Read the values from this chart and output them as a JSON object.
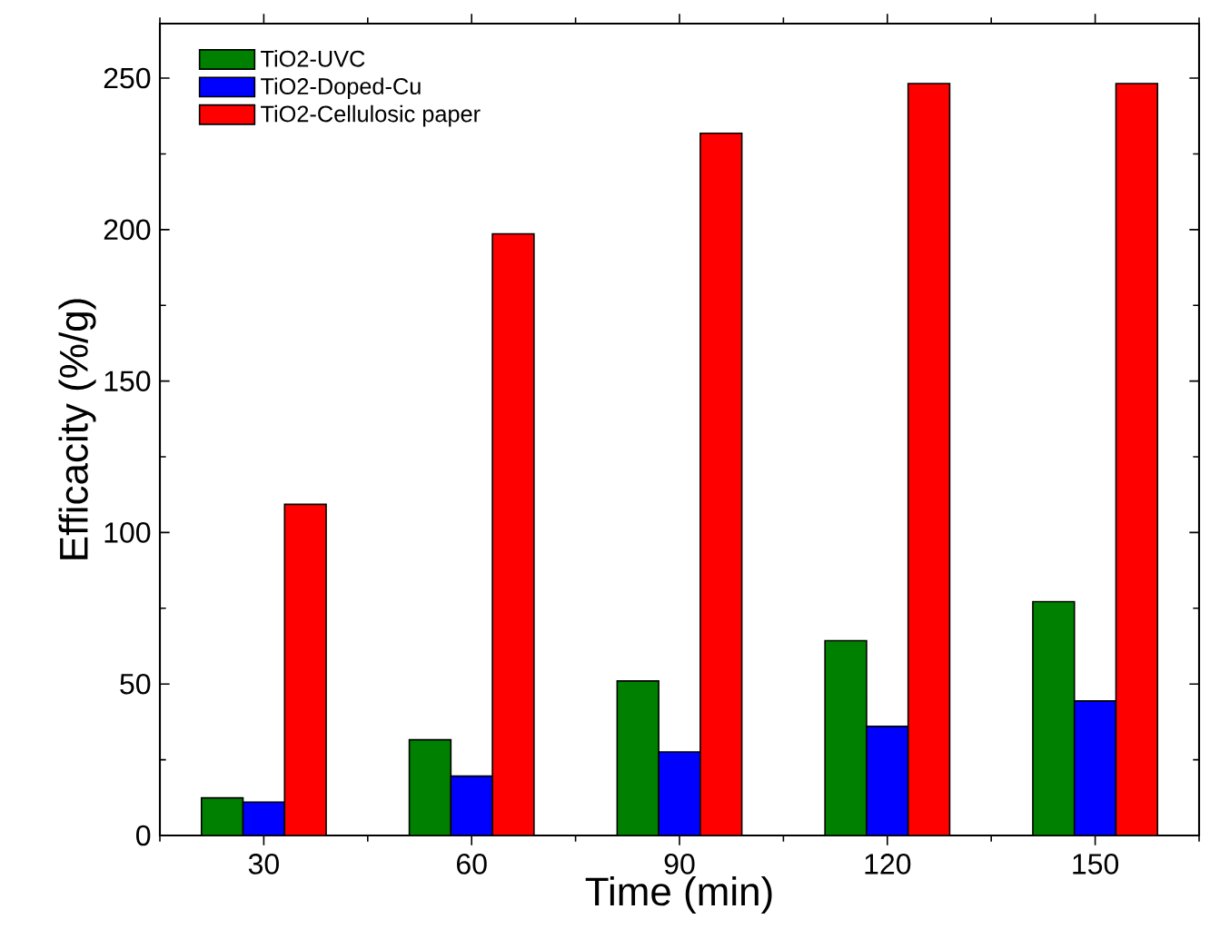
{
  "chart_data": {
    "type": "bar",
    "xlabel": "Time (min)",
    "ylabel": "Efficacity (%/g)",
    "categories": [
      "30",
      "60",
      "90",
      "120",
      "150"
    ],
    "series": [
      {
        "name": "TiO2-UVC",
        "color": "#008000",
        "values": [
          12.4,
          31.6,
          51,
          64.3,
          77.2
        ]
      },
      {
        "name": "TiO2-Doped-Cu",
        "color": "#0000ff",
        "values": [
          11,
          19.6,
          27.6,
          36,
          44.4
        ]
      },
      {
        "name": "TiO2-Cellulosic paper",
        "color": "#ff0000",
        "values": [
          109.3,
          198.6,
          231.8,
          248.2,
          248.2
        ]
      }
    ],
    "ylim": [
      0,
      268
    ],
    "yticks": [
      0,
      50,
      100,
      150,
      200,
      250
    ],
    "grid": false,
    "legend": "top left"
  }
}
